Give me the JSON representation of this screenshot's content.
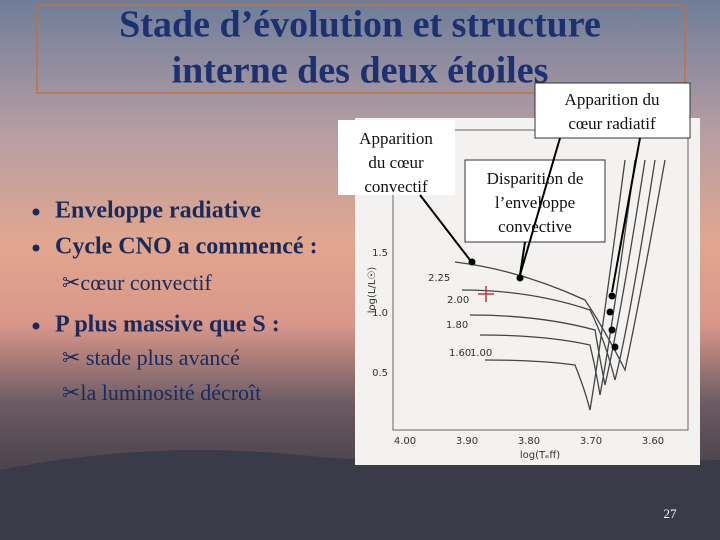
{
  "title": {
    "line1": "Stade d’évolution et structure",
    "line2": "interne des deux étoiles"
  },
  "callouts": [
    {
      "lines": [
        "Apparition du",
        "cœur radiatif"
      ]
    },
    {
      "lines": [
        "Apparition",
        "du cœur",
        "convectif"
      ]
    },
    {
      "lines": [
        "Disparition de",
        "l’enveloppe",
        "convective"
      ]
    }
  ],
  "bullets": [
    {
      "text": "Enveloppe radiative",
      "level": 1
    },
    {
      "text": "Cycle CNO a commencé :",
      "level": 1
    },
    {
      "text": "✂cœur convectif",
      "level": 2
    },
    {
      "text": "P plus massive que S :",
      "level": 1
    },
    {
      "text": "✂ stade plus avancé",
      "level": 2
    },
    {
      "text": "✂la luminosité décroît",
      "level": 2
    }
  ],
  "figure": {
    "y_axis_title": "log(L/L☉)",
    "x_axis_title": "log(Tₑff)",
    "y_tick_labels": [
      "1.5",
      "1.0",
      "0.5"
    ],
    "x_tick_labels": [
      "4.00",
      "3.90",
      "3.80",
      "3.70",
      "3.60"
    ],
    "track_labels": [
      "2.25",
      "2.00",
      "1.80",
      "1.60",
      "1.00"
    ]
  },
  "page_number": "27"
}
